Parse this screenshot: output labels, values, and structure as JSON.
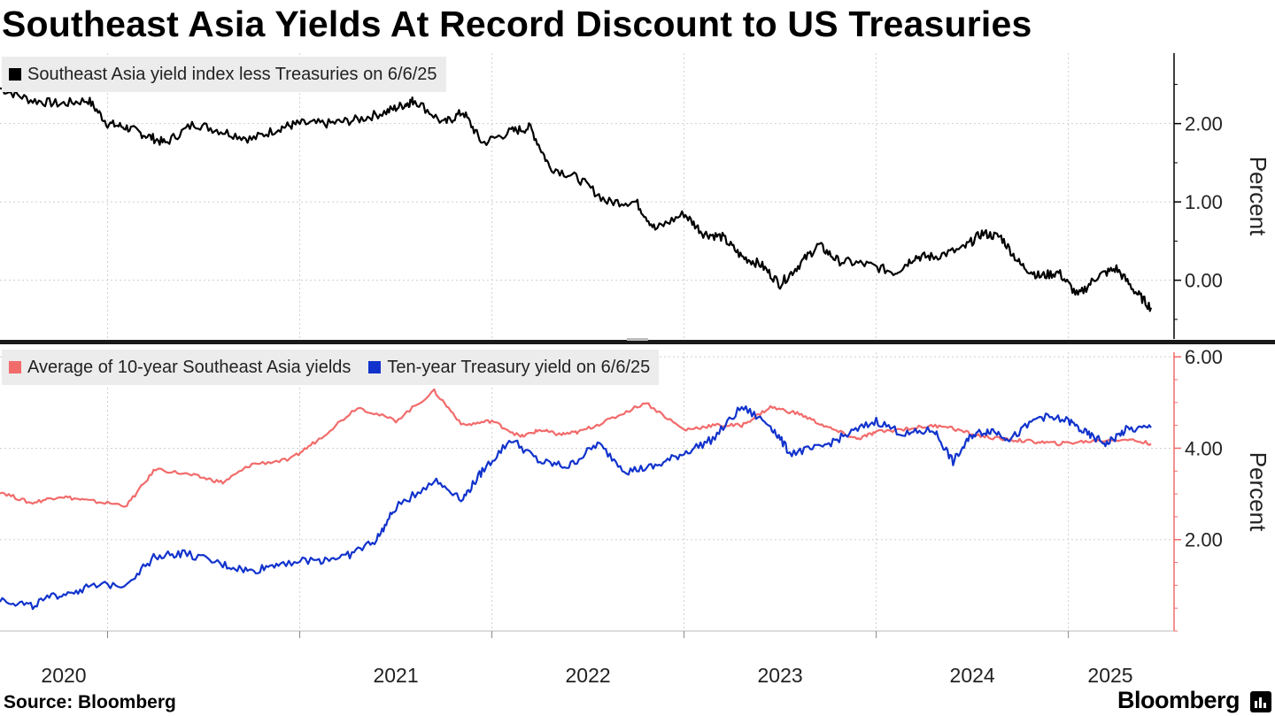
{
  "title": "Southeast Asia Yields At Record Discount to US Treasuries",
  "source": "Source: Bloomberg",
  "brand": "Bloomberg",
  "colors": {
    "spread": "#000000",
    "asean": "#f26b6b",
    "treasury": "#1133cc",
    "grid": "#cfcfcf",
    "lower_axis": "#f26b6b"
  },
  "chart_data": [
    {
      "type": "line",
      "ylabel": "Percent",
      "ylim": [
        -0.75,
        2.9
      ],
      "yticks": [
        "0.00",
        "1.00",
        "2.00"
      ],
      "x_ticks": [
        "2020",
        "2021",
        "2022",
        "2023",
        "2024",
        "2025"
      ],
      "legend": [
        "Southeast Asia yield index less Treasuries on 6/6/25"
      ],
      "series": [
        {
          "name": "Southeast Asia yield index less Treasuries on 6/6/25",
          "x": [
            2019.44,
            2019.6,
            2019.75,
            2019.9,
            2020.0,
            2020.1,
            2020.2,
            2020.3,
            2020.45,
            2020.6,
            2020.75,
            2020.9,
            2021.0,
            2021.15,
            2021.3,
            2021.45,
            2021.55,
            2021.6,
            2021.75,
            2021.85,
            2021.95,
            2022.1,
            2022.2,
            2022.3,
            2022.45,
            2022.6,
            2022.75,
            2022.85,
            2023.0,
            2023.1,
            2023.2,
            2023.3,
            2023.4,
            2023.5,
            2023.6,
            2023.7,
            2023.8,
            2023.95,
            2024.1,
            2024.2,
            2024.3,
            2024.45,
            2024.55,
            2024.65,
            2024.75,
            2024.85,
            2024.95,
            2025.05,
            2025.15,
            2025.25,
            2025.35,
            2025.43
          ],
          "y": [
            2.45,
            2.3,
            2.25,
            2.3,
            2.0,
            1.95,
            1.85,
            1.75,
            2.0,
            1.9,
            1.8,
            1.95,
            2.0,
            2.0,
            2.05,
            2.15,
            2.25,
            2.3,
            2.0,
            2.15,
            1.75,
            1.9,
            1.95,
            1.45,
            1.3,
            1.0,
            1.0,
            0.65,
            0.85,
            0.6,
            0.55,
            0.3,
            0.2,
            -0.05,
            0.2,
            0.45,
            0.25,
            0.2,
            0.1,
            0.3,
            0.3,
            0.4,
            0.6,
            0.55,
            0.2,
            0.05,
            0.1,
            -0.2,
            0.05,
            0.15,
            -0.15,
            -0.35
          ]
        }
      ]
    },
    {
      "type": "line",
      "ylabel": "Percent",
      "ylim": [
        0,
        6.1
      ],
      "yticks": [
        "2.00",
        "4.00",
        "6.00"
      ],
      "x_ticks": [
        "2020",
        "2021",
        "2022",
        "2023",
        "2024",
        "2025"
      ],
      "legend": [
        "Average of 10-year Southeast Asia yields",
        "Ten-year Treasury yield on 6/6/25"
      ],
      "series": [
        {
          "name": "Average of 10-year Southeast Asia yields",
          "x": [
            2019.44,
            2019.6,
            2019.75,
            2019.9,
            2020.1,
            2020.25,
            2020.45,
            2020.6,
            2020.75,
            2020.95,
            2021.1,
            2021.3,
            2021.5,
            2021.7,
            2021.85,
            2022.0,
            2022.15,
            2022.25,
            2022.35,
            2022.45,
            2022.6,
            2022.8,
            2023.0,
            2023.15,
            2023.3,
            2023.45,
            2023.6,
            2023.75,
            2023.9,
            2024.0,
            2024.2,
            2024.35,
            2024.5,
            2024.65,
            2024.8,
            2024.95,
            2025.1,
            2025.3,
            2025.43
          ],
          "y": [
            3.05,
            2.8,
            2.95,
            2.85,
            2.75,
            3.55,
            3.4,
            3.25,
            3.65,
            3.75,
            4.2,
            4.9,
            4.6,
            5.25,
            4.5,
            4.6,
            4.25,
            4.4,
            4.3,
            4.35,
            4.6,
            5.0,
            4.4,
            4.5,
            4.5,
            4.9,
            4.75,
            4.45,
            4.2,
            4.35,
            4.45,
            4.5,
            4.3,
            4.2,
            4.15,
            4.1,
            4.15,
            4.2,
            4.1
          ]
        },
        {
          "name": "Ten-year Treasury yield on 6/6/25",
          "x": [
            2019.44,
            2019.6,
            2019.75,
            2019.9,
            2020.1,
            2020.25,
            2020.4,
            2020.6,
            2020.75,
            2020.9,
            2021.1,
            2021.25,
            2021.4,
            2021.5,
            2021.7,
            2021.85,
            2021.95,
            2022.1,
            2022.25,
            2022.4,
            2022.55,
            2022.7,
            2022.85,
            2023.0,
            2023.15,
            2023.3,
            2023.45,
            2023.55,
            2023.7,
            2023.85,
            2024.0,
            2024.15,
            2024.3,
            2024.4,
            2024.5,
            2024.6,
            2024.7,
            2024.85,
            2025.0,
            2025.1,
            2025.2,
            2025.3,
            2025.43
          ],
          "y": [
            0.7,
            0.55,
            0.8,
            0.95,
            1.05,
            1.65,
            1.7,
            1.45,
            1.3,
            1.5,
            1.55,
            1.65,
            2.0,
            2.7,
            3.3,
            2.9,
            3.5,
            4.2,
            3.7,
            3.6,
            4.1,
            3.5,
            3.6,
            3.9,
            4.2,
            4.9,
            4.5,
            3.9,
            4.0,
            4.3,
            4.6,
            4.3,
            4.4,
            3.7,
            4.3,
            4.4,
            4.2,
            4.7,
            4.6,
            4.3,
            4.1,
            4.4,
            4.45
          ]
        }
      ]
    }
  ]
}
